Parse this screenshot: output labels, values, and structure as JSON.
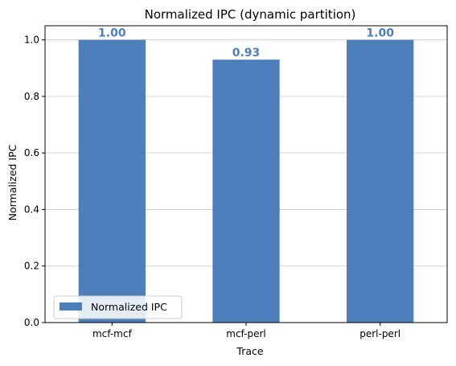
{
  "chart_data": {
    "type": "bar",
    "title": "Normalized IPC (dynamic partition)",
    "xlabel": "Trace",
    "ylabel": "Normalized IPC",
    "categories": [
      "mcf-mcf",
      "mcf-perl",
      "perl-perl"
    ],
    "series": [
      {
        "name": "Normalized IPC",
        "values": [
          1.0,
          0.93,
          1.0
        ]
      }
    ],
    "data_labels": [
      "1.00",
      "0.93",
      "1.00"
    ],
    "ylim": [
      0,
      1.05
    ],
    "yticks": [
      0.0,
      0.2,
      0.4,
      0.6,
      0.8,
      1.0
    ],
    "ytick_labels": [
      "0.0",
      "0.2",
      "0.4",
      "0.6",
      "0.8",
      "1.0"
    ],
    "grid": "y",
    "legend_position": "lower-left",
    "colors": {
      "bar": "#4e7fbd",
      "label": "#4e7fbd",
      "grid": "#c8c8c8"
    }
  }
}
